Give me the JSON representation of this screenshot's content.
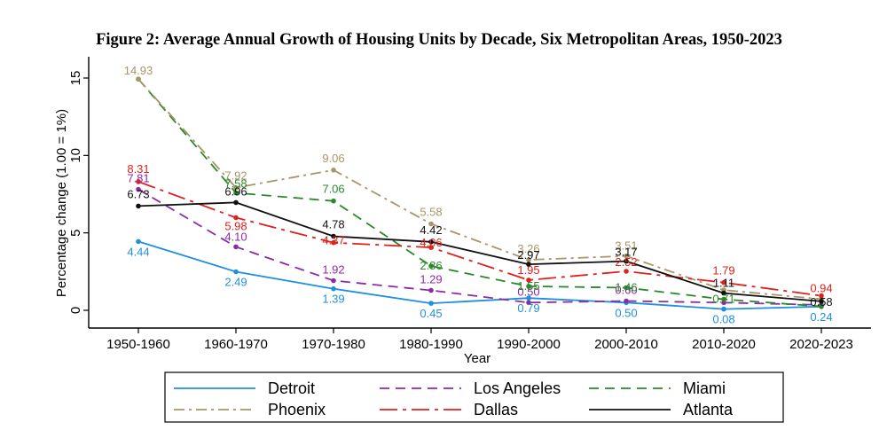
{
  "chart_data": {
    "type": "line",
    "title": "Figure 2: Average Annual Growth of Housing Units by Decade, Six Metropolitan Areas, 1950-2023",
    "xlabel": "Year",
    "ylabel": "Percentage change (1.00 = 1%)",
    "ylim": [
      -1,
      16
    ],
    "yticks": [
      0,
      5,
      10,
      15
    ],
    "ytick_labels": [
      "0",
      "5",
      "10",
      "15"
    ],
    "categories": [
      "1950-1960",
      "1960-1970",
      "1970-1980",
      "1980-1990",
      "1990-2000",
      "2000-2010",
      "2010-2020",
      "2020-2023"
    ],
    "legend_position": "bottom",
    "series": [
      {
        "name": "Detroit",
        "color": "#1f8fe0",
        "dash": "solid",
        "values": [
          4.44,
          2.49,
          1.39,
          0.45,
          0.79,
          0.5,
          0.08,
          0.24
        ],
        "labels": [
          "4.44",
          "2.49",
          "1.39",
          "0.45",
          "0.79",
          "0.50",
          "0.08",
          "0.24"
        ]
      },
      {
        "name": "Los Angeles",
        "color": "#8e2aa6",
        "dash": "dash",
        "values": [
          7.81,
          4.1,
          1.92,
          1.29,
          0.5,
          0.6,
          0.5,
          0.35
        ],
        "labels": [
          "7.81",
          "4.10",
          "1.92",
          "1.29",
          "0.50",
          "0.60",
          "",
          ""
        ]
      },
      {
        "name": "Miami",
        "color": "#2a8a2a",
        "dash": "dash",
        "values": [
          14.93,
          7.58,
          7.06,
          2.86,
          1.55,
          1.46,
          0.71,
          0.25
        ],
        "labels": [
          "",
          "7.58",
          "7.06",
          "2.86",
          "1.55",
          "1.46",
          "0.71",
          ""
        ]
      },
      {
        "name": "Phoenix",
        "color": "#a89668",
        "dash": "dashdot",
        "values": [
          14.93,
          7.92,
          9.06,
          5.58,
          3.26,
          3.51,
          1.31,
          0.72
        ],
        "labels": [
          "14.93",
          "7.92",
          "9.06",
          "5.58",
          "3.26",
          "3.51",
          "",
          ""
        ]
      },
      {
        "name": "Dallas",
        "color": "#e0201c",
        "dash": "longdashdot",
        "values": [
          8.31,
          5.98,
          4.37,
          4.06,
          1.95,
          2.52,
          1.79,
          0.94
        ],
        "labels": [
          "8.31",
          "5.98",
          "4.37",
          "4.06",
          "1.95",
          "2.52",
          "1.79",
          "0.94"
        ]
      },
      {
        "name": "Atlanta",
        "color": "#111111",
        "dash": "solid",
        "values": [
          6.73,
          6.96,
          4.78,
          4.42,
          2.97,
          3.17,
          1.11,
          0.58
        ],
        "labels": [
          "6.73",
          "6.96",
          "4.78",
          "4.42",
          "2.97",
          "3.17",
          "1.11",
          "0.58"
        ]
      }
    ]
  }
}
